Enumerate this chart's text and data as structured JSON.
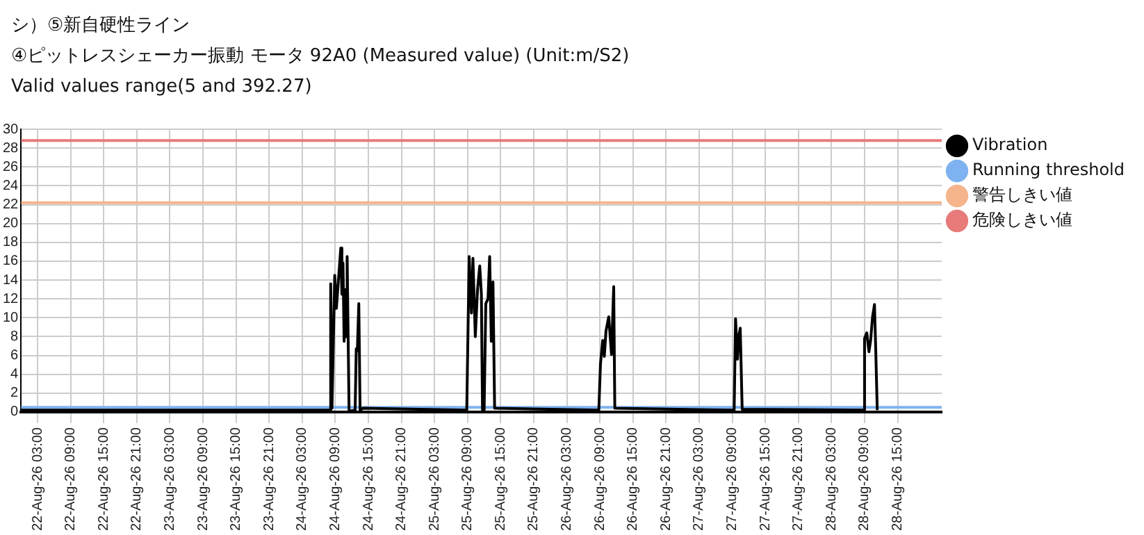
{
  "chart_data": {
    "type": "line",
    "title": "シ）⑤新自硬性ライン",
    "subtitle": "④ピットレスシェーカー振動 モータ 92A0 (Measured value) (Unit:m/S2)",
    "annotations": [
      "Valid values range(5 and 392.27)"
    ],
    "xlim": [
      "--08-22T00:00",
      "--08-28T23:00"
    ],
    "xticks": [
      {
        "value": "--08-22T03:00",
        "label": "22-Aug-26 03:00"
      },
      {
        "value": "--08-22T09:00",
        "label": "22-Aug-26 09:00"
      },
      {
        "value": "--08-22T15:00",
        "label": "22-Aug-26 15:00"
      },
      {
        "value": "--08-22T21:00",
        "label": "22-Aug-26 21:00"
      },
      {
        "value": "--08-23T03:00",
        "label": "23-Aug-26 03:00"
      },
      {
        "value": "--08-23T09:00",
        "label": "23-Aug-26 09:00"
      },
      {
        "value": "--08-23T15:00",
        "label": "23-Aug-26 15:00"
      },
      {
        "value": "--08-23T21:00",
        "label": "23-Aug-26 21:00"
      },
      {
        "value": "--08-24T03:00",
        "label": "24-Aug-26 03:00"
      },
      {
        "value": "--08-24T09:00",
        "label": "24-Aug-26 09:00"
      },
      {
        "value": "--08-24T15:00",
        "label": "24-Aug-26 15:00"
      },
      {
        "value": "--08-24T21:00",
        "label": "24-Aug-26 21:00"
      },
      {
        "value": "--08-25T03:00",
        "label": "25-Aug-26 03:00"
      },
      {
        "value": "--08-25T09:00",
        "label": "25-Aug-26 09:00"
      },
      {
        "value": "--08-25T15:00",
        "label": "25-Aug-26 15:00"
      },
      {
        "value": "--08-25T21:00",
        "label": "25-Aug-26 21:00"
      },
      {
        "value": "--08-26T03:00",
        "label": "26-Aug-26 03:00"
      },
      {
        "value": "--08-26T09:00",
        "label": "26-Aug-26 09:00"
      },
      {
        "value": "--08-26T15:00",
        "label": "26-Aug-26 15:00"
      },
      {
        "value": "--08-26T21:00",
        "label": "26-Aug-26 21:00"
      },
      {
        "value": "--08-27T03:00",
        "label": "27-Aug-26 03:00"
      },
      {
        "value": "--08-27T09:00",
        "label": "27-Aug-26 09:00"
      },
      {
        "value": "--08-27T15:00",
        "label": "27-Aug-26 15:00"
      },
      {
        "value": "--08-27T21:00",
        "label": "27-Aug-26 21:00"
      },
      {
        "value": "--08-28T03:00",
        "label": "28-Aug-26 03:00"
      },
      {
        "value": "--08-28T09:00",
        "label": "28-Aug-26 09:00"
      },
      {
        "value": "--08-28T15:00",
        "label": "28-Aug-26 15:00"
      }
    ],
    "ylim": [
      0,
      30
    ],
    "yticks": [
      0,
      2,
      4,
      6,
      8,
      10,
      12,
      14,
      16,
      18,
      20,
      22,
      24,
      26,
      28,
      30
    ],
    "grid": true,
    "legend": "right",
    "marker": "none",
    "line_style": "solid",
    "series": [
      {
        "name": "Vibration",
        "color": "#000000",
        "x": [
          "--08-22T00:00",
          "--08-23T06:00",
          "--08-24T08:00",
          "--08-24T08:10",
          "--08-24T08:24",
          "--08-24T08:54",
          "--08-24T09:12",
          "--08-24T10:00",
          "--08-24T10:12",
          "--08-24T10:24",
          "--08-24T10:36",
          "--08-24T10:48",
          "--08-24T11:00",
          "--08-24T11:09",
          "--08-24T11:30",
          "--08-24T12:36",
          "--08-24T12:48",
          "--08-24T13:00",
          "--08-24T13:16",
          "--08-24T13:30",
          "--08-24T14:00",
          "--08-25T08:42",
          "--08-25T08:51",
          "--08-25T09:17",
          "--08-25T09:42",
          "--08-25T09:58",
          "--08-25T10:24",
          "--08-25T10:48",
          "--08-25T11:12",
          "--08-25T11:30",
          "--08-25T11:42",
          "--08-25T12:00",
          "--08-25T12:18",
          "--08-25T12:42",
          "--08-25T13:00",
          "--08-25T13:18",
          "--08-25T13:36",
          "--08-25T13:54",
          "--08-26T08:48",
          "--08-26T09:06",
          "--08-26T09:30",
          "--08-26T09:48",
          "--08-26T10:06",
          "--08-26T10:36",
          "--08-26T11:06",
          "--08-26T11:30",
          "--08-26T11:42",
          "--08-27T09:21",
          "--08-27T09:36",
          "--08-27T09:57",
          "--08-27T10:12",
          "--08-27T10:27",
          "--08-27T10:48",
          "--08-28T08:54",
          "--08-28T09:00",
          "--08-28T09:24",
          "--08-28T09:48",
          "--08-28T10:06",
          "--08-28T10:27",
          "--08-28T10:48",
          "--08-28T11:03",
          "--08-28T11:18"
        ],
        "values": [
          0.2,
          0.2,
          0.2,
          13.6,
          0.4,
          14.5,
          11,
          17.4,
          12.5,
          15.8,
          7.5,
          13,
          8,
          16.5,
          0.1,
          0.2,
          6.7,
          6.5,
          11.5,
          0.2,
          0.4,
          0.2,
          0.3,
          16.5,
          10.5,
          16.3,
          8,
          13,
          15.5,
          12.5,
          0.2,
          0.2,
          11.5,
          12,
          16.5,
          7.5,
          13.8,
          0.4,
          0.2,
          5.1,
          7.6,
          5.9,
          8.6,
          10.1,
          6.1,
          13.3,
          0.4,
          0.2,
          9.9,
          5.6,
          8.1,
          8.9,
          0.3,
          0.2,
          7.8,
          8.4,
          6.4,
          7.6,
          10.1,
          11.4,
          6.1,
          0.2
        ]
      },
      {
        "name": "Running threshold",
        "color": "#7fb2f0",
        "x": [
          "--08-22T00:00",
          "--08-28T23:00"
        ],
        "values": [
          0.5,
          0.5
        ]
      },
      {
        "name": "警告しきい値",
        "color": "#f5b48c",
        "x": [
          "--08-22T00:00",
          "--08-28T23:00"
        ],
        "values": [
          22.2,
          22.2
        ]
      },
      {
        "name": "危険しきい値",
        "color": "#e87a7a",
        "x": [
          "--08-22T00:00",
          "--08-28T23:00"
        ],
        "values": [
          28.8,
          28.8
        ]
      }
    ]
  }
}
